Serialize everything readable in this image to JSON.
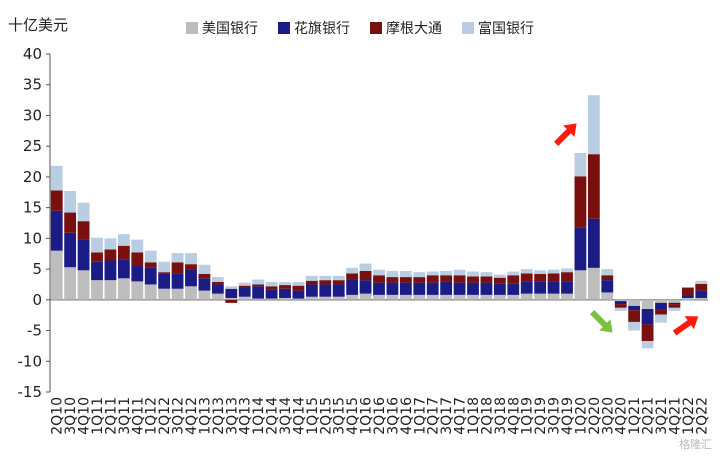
{
  "unit_label": "十亿美元",
  "watermark": "格隆汇",
  "colors": {
    "bofa": "#bdbdbd",
    "citi": "#1b1b86",
    "jpm": "#7a0f0f",
    "wfc": "#b9cde3",
    "arrow_red": "#ff1a0a",
    "arrow_green": "#7ac143"
  },
  "chart_data": {
    "type": "bar",
    "stacked": true,
    "ylim": [
      -15,
      40
    ],
    "yticks": [
      -15,
      -10,
      -5,
      0,
      5,
      10,
      15,
      20,
      25,
      30,
      35,
      40
    ],
    "xlabel": "",
    "ylabel": "",
    "legend_position": "top",
    "categories": [
      "2Q10",
      "3Q10",
      "4Q10",
      "1Q11",
      "2Q11",
      "3Q11",
      "4Q11",
      "1Q12",
      "2Q12",
      "3Q12",
      "4Q12",
      "1Q13",
      "2Q13",
      "3Q13",
      "4Q13",
      "1Q14",
      "2Q14",
      "3Q14",
      "4Q14",
      "1Q15",
      "2Q15",
      "3Q15",
      "4Q15",
      "1Q16",
      "2Q16",
      "3Q16",
      "4Q16",
      "1Q17",
      "2Q17",
      "3Q17",
      "4Q17",
      "1Q18",
      "2Q18",
      "3Q18",
      "4Q18",
      "1Q19",
      "2Q19",
      "3Q19",
      "4Q19",
      "1Q20",
      "2Q20",
      "3Q20",
      "4Q20",
      "1Q21",
      "2Q21",
      "3Q21",
      "4Q21",
      "1Q22",
      "2Q22"
    ],
    "series": [
      {
        "name": "美国银行",
        "values": [
          8.0,
          5.3,
          4.8,
          3.2,
          3.2,
          3.5,
          3.0,
          2.5,
          1.8,
          1.8,
          2.2,
          1.5,
          1.0,
          0.3,
          0.5,
          0.2,
          0.2,
          0.3,
          0.2,
          0.5,
          0.5,
          0.5,
          0.8,
          1.0,
          0.8,
          0.8,
          0.8,
          0.8,
          0.8,
          0.8,
          0.8,
          0.8,
          0.8,
          0.8,
          0.8,
          1.0,
          1.0,
          1.0,
          1.0,
          4.8,
          5.2,
          1.2,
          -0.2,
          -1.0,
          -1.5,
          -0.5,
          -0.5,
          0.3,
          0.3
        ]
      },
      {
        "name": "花旗银行",
        "values": [
          6.5,
          5.6,
          5.0,
          3.0,
          3.2,
          3.0,
          2.5,
          2.8,
          2.5,
          2.5,
          2.8,
          2.0,
          1.5,
          1.5,
          1.5,
          2.0,
          1.5,
          1.5,
          1.3,
          2.0,
          2.0,
          2.0,
          2.5,
          2.2,
          2.0,
          2.0,
          2.0,
          2.0,
          2.0,
          2.2,
          2.0,
          2.0,
          2.0,
          1.8,
          1.8,
          2.0,
          2.0,
          2.0,
          2.0,
          7.0,
          8.0,
          2.0,
          -0.5,
          -0.7,
          -2.5,
          -1.0,
          -0.2,
          0.4,
          1.2
        ]
      },
      {
        "name": "摩根大通",
        "values": [
          3.3,
          3.3,
          3.0,
          1.5,
          1.8,
          2.3,
          2.2,
          0.8,
          0.2,
          1.8,
          0.8,
          0.7,
          0.4,
          -0.5,
          0.3,
          0.3,
          0.5,
          0.6,
          0.8,
          0.6,
          0.7,
          0.7,
          1.0,
          1.5,
          1.2,
          0.9,
          0.9,
          0.9,
          1.2,
          1.0,
          1.2,
          1.0,
          1.0,
          1.0,
          1.4,
          1.3,
          1.2,
          1.3,
          1.5,
          8.3,
          10.5,
          0.8,
          -0.6,
          -1.9,
          -2.7,
          -0.9,
          -0.6,
          1.3,
          1.1
        ]
      },
      {
        "name": "富国银行",
        "values": [
          4.0,
          3.5,
          3.0,
          2.4,
          1.8,
          1.9,
          2.1,
          1.9,
          1.7,
          1.5,
          1.8,
          1.5,
          0.8,
          0.4,
          0.5,
          0.8,
          0.7,
          0.5,
          0.6,
          0.8,
          0.7,
          0.7,
          0.9,
          1.2,
          0.9,
          1.0,
          1.0,
          0.8,
          0.6,
          0.7,
          0.9,
          0.8,
          0.7,
          0.5,
          0.6,
          0.7,
          0.6,
          0.6,
          0.6,
          3.8,
          9.6,
          1.0,
          -0.5,
          -1.4,
          -1.2,
          -1.3,
          -0.5,
          -0.2,
          0.5
        ]
      }
    ]
  }
}
